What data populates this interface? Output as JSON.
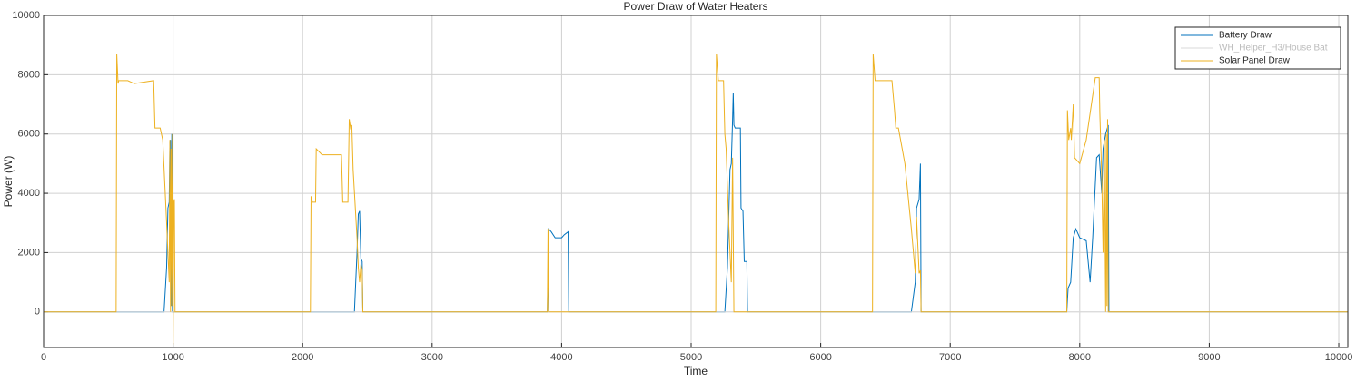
{
  "chart_data": {
    "type": "line",
    "title": "Power Draw of Water Heaters",
    "xlabel": "Time",
    "ylabel": "Power (W)",
    "xlim": [
      0,
      10070
    ],
    "ylim": [
      -1200,
      10000
    ],
    "xticks": [
      0,
      1000,
      2000,
      3000,
      4000,
      5000,
      6000,
      7000,
      8000,
      9000,
      10000
    ],
    "yticks": [
      0,
      2000,
      4000,
      6000,
      8000,
      10000
    ],
    "grid": true,
    "legend": "top-right",
    "series": [
      {
        "name": "Battery Draw",
        "color": "#0072bd",
        "x": [
          0,
          900,
          930,
          950,
          960,
          970,
          975,
          980,
          985,
          990,
          995,
          2350,
          2400,
          2420,
          2430,
          2440,
          2450,
          2460,
          2465,
          3890,
          3900,
          3920,
          3950,
          4000,
          4020,
          4050,
          4055,
          5190,
          5260,
          5280,
          5300,
          5310,
          5320,
          5325,
          5330,
          5340,
          5380,
          5385,
          5400,
          5410,
          5430,
          5435,
          6700,
          6730,
          6740,
          6760,
          6770,
          6775,
          7900,
          7910,
          7930,
          7950,
          7970,
          8000,
          8050,
          8080,
          8100,
          8130,
          8150,
          8170,
          8180,
          8200,
          8220,
          8225,
          10070
        ],
        "values": [
          0,
          0,
          0,
          1500,
          3500,
          3700,
          5700,
          5800,
          200,
          6000,
          0,
          0,
          0,
          2000,
          3300,
          3400,
          1800,
          1700,
          0,
          0,
          2800,
          2700,
          2500,
          2500,
          2600,
          2700,
          0,
          0,
          0,
          1500,
          4800,
          5000,
          6500,
          7400,
          6300,
          6200,
          6200,
          3500,
          3400,
          1700,
          1700,
          0,
          0,
          1000,
          3500,
          3800,
          5000,
          0,
          0,
          800,
          1000,
          2500,
          2800,
          2500,
          2400,
          1000,
          2500,
          5200,
          5300,
          4000,
          5500,
          6000,
          6300,
          0,
          0
        ]
      },
      {
        "name": "WH_Helper_H3/House Bat",
        "color": "#d9d9d9",
        "x": [
          0,
          10070
        ],
        "values": [
          0,
          0
        ]
      },
      {
        "name": "Solar Panel Draw",
        "color": "#edb120",
        "x": [
          0,
          560,
          565,
          575,
          580,
          650,
          700,
          850,
          860,
          900,
          920,
          950,
          970,
          975,
          980,
          985,
          990,
          995,
          1000,
          1005,
          1010,
          1015,
          2060,
          2065,
          2075,
          2100,
          2105,
          2150,
          2300,
          2310,
          2350,
          2360,
          2370,
          2380,
          2390,
          2420,
          2430,
          2440,
          2450,
          2460,
          2465,
          3890,
          3895,
          3900,
          3930,
          5190,
          5195,
          5210,
          5250,
          5260,
          5270,
          5290,
          5310,
          5320,
          5330,
          5360,
          6400,
          6405,
          6420,
          6550,
          6570,
          6580,
          6600,
          6650,
          6700,
          6730,
          6740,
          6760,
          6770,
          6775,
          7900,
          7905,
          7915,
          7930,
          7935,
          7950,
          7960,
          8000,
          8050,
          8120,
          8150,
          8155,
          8170,
          8180,
          8190,
          8200,
          8205,
          8210,
          8215,
          8220,
          10070
        ],
        "values": [
          0,
          0,
          8700,
          7700,
          7800,
          7800,
          7700,
          7800,
          6200,
          6200,
          5800,
          3000,
          1000,
          5800,
          0,
          5500,
          200,
          6000,
          -1100,
          3700,
          3800,
          0,
          0,
          3900,
          3700,
          3700,
          5500,
          5300,
          5300,
          3700,
          3700,
          6500,
          6200,
          6300,
          4800,
          2500,
          1500,
          1000,
          1600,
          1400,
          0,
          0,
          2800,
          0,
          0,
          0,
          8700,
          7800,
          7800,
          6000,
          5500,
          3000,
          1000,
          5200,
          0,
          0,
          0,
          8700,
          7800,
          7800,
          6800,
          6200,
          6200,
          5000,
          2800,
          1300,
          3200,
          1300,
          1400,
          0,
          0,
          6800,
          5800,
          6200,
          5800,
          7000,
          5200,
          5000,
          5800,
          7900,
          7900,
          6700,
          4500,
          2000,
          5800,
          0,
          6000,
          200,
          6500,
          0,
          0
        ]
      }
    ]
  }
}
